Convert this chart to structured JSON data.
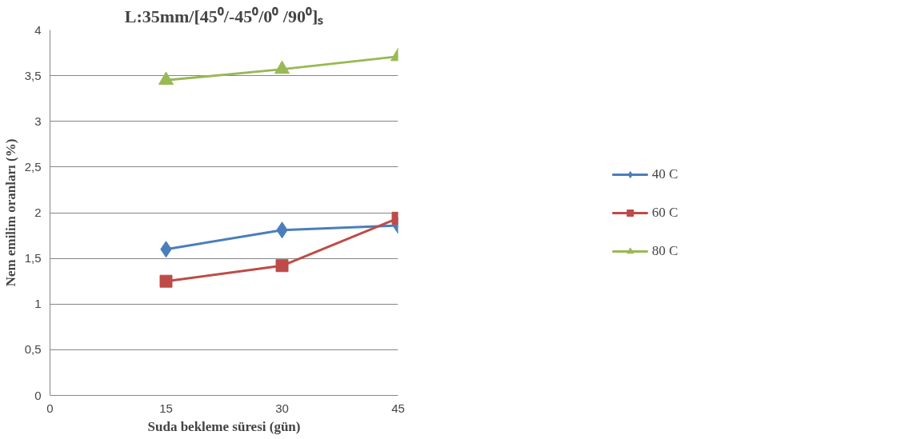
{
  "chart_data": {
    "type": "line",
    "title": "L:35mm/[45⁰/-45⁰/0⁰ /90⁰]ₛ",
    "xlabel": "Suda bekleme süresi (gün)",
    "ylabel": "Nem emilim oranları (%)",
    "x": [
      15,
      30,
      45
    ],
    "series": [
      {
        "name": "40 C",
        "color": "#4a7ebb",
        "values": [
          1.6,
          1.81,
          1.86
        ],
        "marker": "diamond"
      },
      {
        "name": "60 C",
        "color": "#be4b48",
        "values": [
          1.25,
          1.42,
          1.94
        ],
        "marker": "square"
      },
      {
        "name": "80 C",
        "color": "#98b954",
        "values": [
          3.45,
          3.57,
          3.71
        ],
        "marker": "triangle"
      }
    ],
    "xlim": [
      0,
      45
    ],
    "xticks": [
      0,
      15,
      30,
      45
    ],
    "ylim": [
      0,
      4
    ],
    "yticks": [
      0,
      {
        "value": 0.5,
        "label": "0,5"
      },
      1,
      {
        "value": 1.5,
        "label": "1,5"
      },
      2,
      {
        "value": 2.5,
        "label": "2,5"
      },
      3,
      {
        "value": 3.5,
        "label": "3,5"
      },
      4
    ],
    "grid": "y",
    "legend": "right",
    "line_style": "solid"
  }
}
